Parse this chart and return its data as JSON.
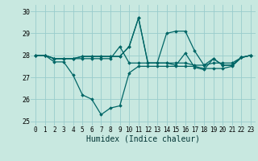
{
  "xlabel": "Humidex (Indice chaleur)",
  "bg_color": "#c8e8e0",
  "grid_color": "#99cccc",
  "line_color": "#006666",
  "xlim": [
    -0.5,
    23.5
  ],
  "ylim": [
    24.8,
    30.3
  ],
  "yticks": [
    25,
    26,
    27,
    28,
    29,
    30
  ],
  "xticks": [
    0,
    1,
    2,
    3,
    4,
    5,
    6,
    7,
    8,
    9,
    10,
    11,
    12,
    13,
    14,
    15,
    16,
    17,
    18,
    19,
    20,
    21,
    22,
    23
  ],
  "series": [
    [
      28.0,
      28.0,
      27.7,
      27.7,
      27.1,
      26.2,
      26.0,
      25.3,
      25.6,
      25.7,
      27.2,
      27.5,
      27.5,
      27.5,
      27.5,
      27.5,
      27.5,
      27.5,
      27.4,
      27.4,
      27.4,
      27.5,
      27.9,
      28.0
    ],
    [
      28.0,
      28.0,
      27.85,
      27.85,
      27.85,
      27.85,
      27.85,
      27.85,
      27.85,
      28.4,
      27.65,
      27.65,
      27.65,
      27.65,
      27.65,
      27.65,
      27.65,
      27.55,
      27.55,
      27.65,
      27.65,
      27.65,
      27.9,
      28.0
    ],
    [
      28.0,
      28.0,
      27.85,
      27.85,
      27.85,
      27.95,
      27.95,
      27.95,
      27.95,
      27.95,
      28.4,
      29.7,
      27.65,
      27.65,
      27.65,
      27.55,
      28.1,
      27.45,
      27.35,
      27.85,
      27.55,
      27.55,
      27.9,
      28.0
    ],
    [
      28.0,
      28.0,
      27.85,
      27.85,
      27.85,
      27.95,
      27.95,
      27.95,
      27.95,
      27.95,
      28.4,
      29.7,
      27.65,
      27.65,
      29.0,
      29.1,
      29.1,
      28.2,
      27.55,
      27.85,
      27.55,
      27.55,
      27.9,
      28.0
    ]
  ]
}
